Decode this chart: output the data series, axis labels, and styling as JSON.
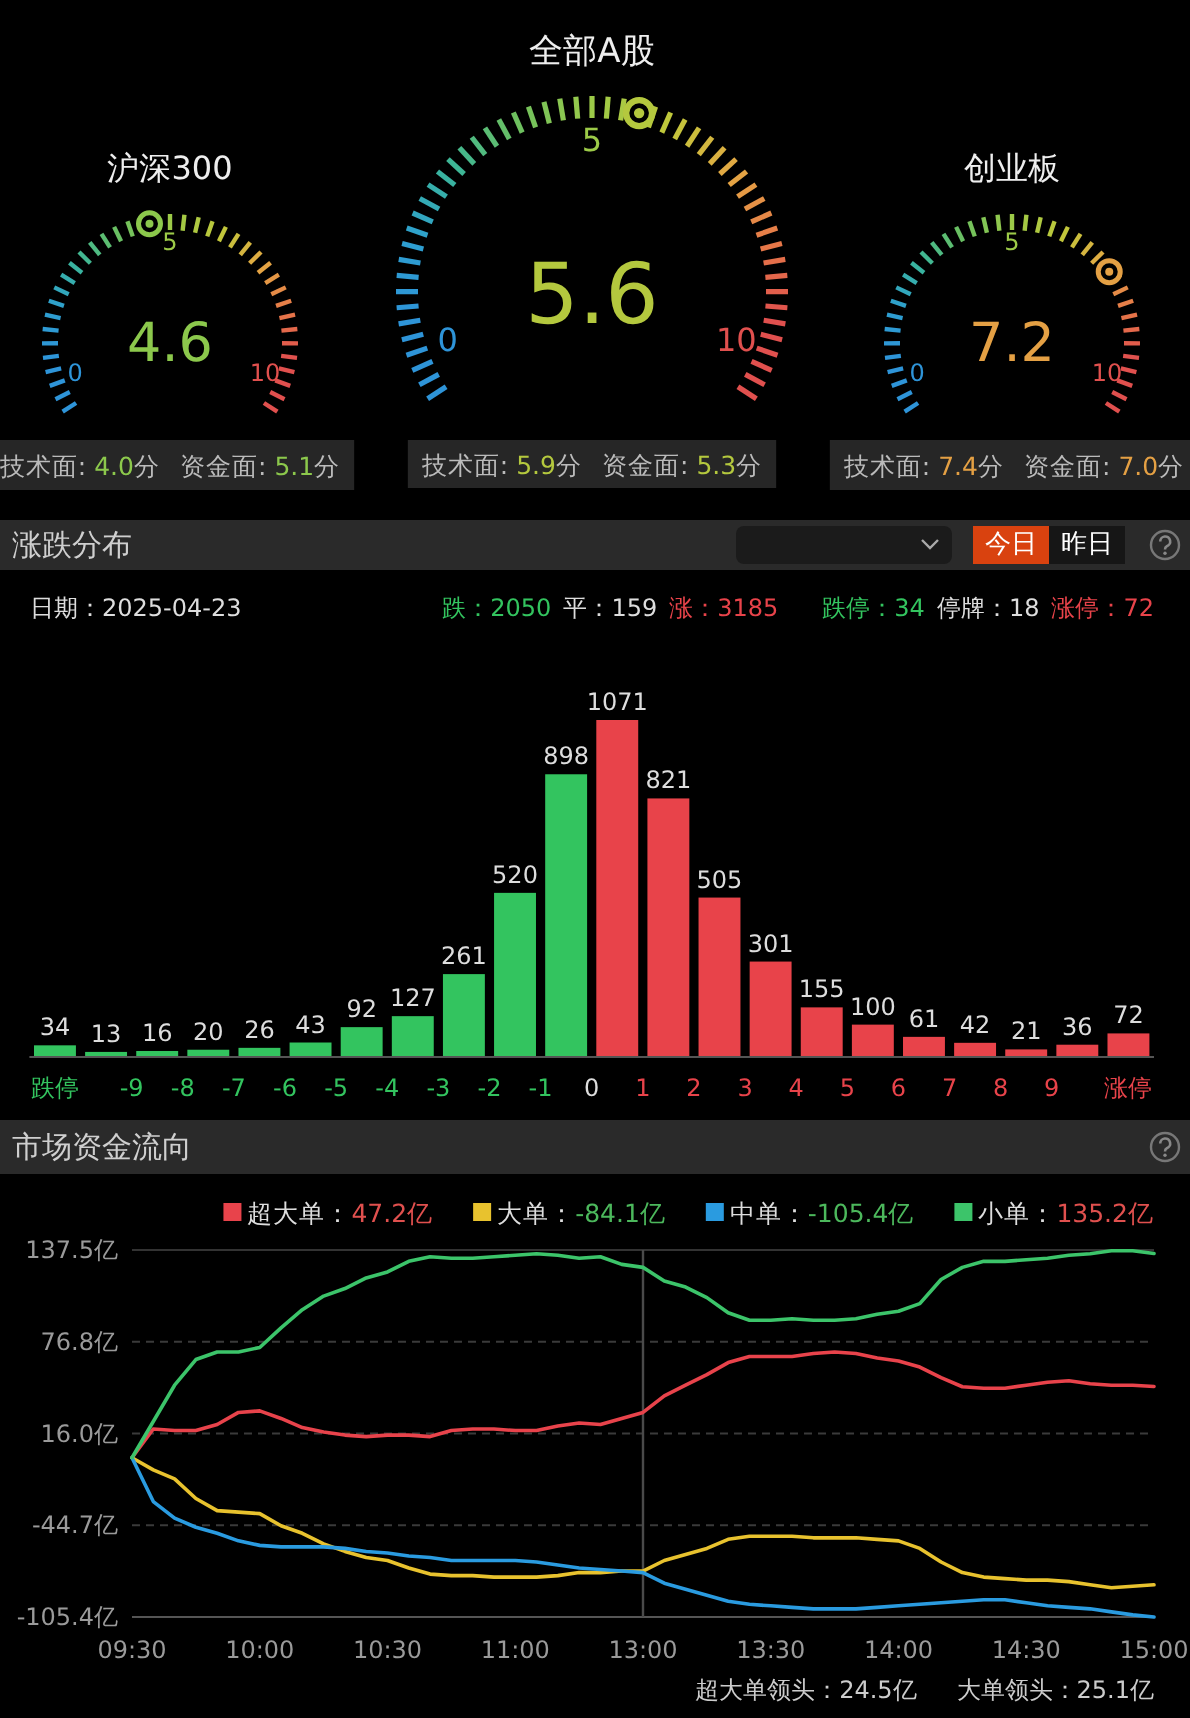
{
  "chart_data": [
    {
      "type": "other",
      "title": "沪深300",
      "values": [
        4.6
      ],
      "data_labels": true,
      "color": "#8cc84c",
      "annotations": [
        "0",
        "5",
        "10"
      ]
    },
    {
      "type": "other",
      "title": "全部A股",
      "values": [
        5.6
      ],
      "data_labels": true,
      "color": "#b4c83e",
      "annotations": [
        "0",
        "5",
        "10"
      ]
    },
    {
      "type": "other",
      "title": "创业板",
      "values": [
        7.2
      ],
      "data_labels": true,
      "color": "#e4a044",
      "annotations": [
        "0",
        "5",
        "10"
      ]
    },
    {
      "type": "other",
      "color": "#8cc84c",
      "annotations": [
        "技术面: 4.0分",
        "资金面: 5.1分"
      ]
    },
    {
      "type": "other",
      "color": "#b4c83e",
      "annotations": [
        "技术面: 5.9分",
        "资金面: 5.3分"
      ]
    },
    {
      "type": "other",
      "color": "#e4a044",
      "annotations": [
        "技术面: 7.4分",
        "资金面: 7.0分"
      ]
    },
    {
      "type": "bar",
      "title": "涨跌分布",
      "x": [
        -10.5,
        -9.5,
        -8.5,
        -7.5,
        -6.5,
        -5.5,
        -4.5,
        -3.5,
        -2.5,
        -1.5,
        -0.5,
        0.5,
        1.5,
        2.5,
        3.5,
        4.5,
        5.5,
        6.5,
        7.5,
        8.5,
        9.5,
        10.5
      ],
      "values": [
        34,
        13,
        16,
        20,
        26,
        43,
        92,
        127,
        261,
        520,
        898,
        1071,
        821,
        505,
        301,
        155,
        100,
        61,
        42,
        21,
        36,
        72
      ],
      "colors": [
        "#33c45f",
        "#33c45f",
        "#33c45f",
        "#33c45f",
        "#33c45f",
        "#33c45f",
        "#33c45f",
        "#33c45f",
        "#33c45f",
        "#33c45f",
        "#33c45f",
        "#e8434a",
        "#e8434a",
        "#e8434a",
        "#e8434a",
        "#e8434a",
        "#e8434a",
        "#e8434a",
        "#e8434a",
        "#e8434a",
        "#e8434a",
        "#e8434a"
      ],
      "xlim": [
        -11,
        11
      ],
      "xticks": [
        {
          "value": -10.5,
          "label": "跌停"
        },
        -9,
        -8,
        -7,
        -6,
        -5,
        -4,
        -3,
        -2,
        -1,
        0,
        1,
        2,
        3,
        4,
        5,
        6,
        7,
        8,
        9,
        {
          "value": 10.5,
          "label": "涨停"
        }
      ],
      "data_labels": true,
      "annotations": [
        "今日",
        "昨日",
        "日期：2025-04-23",
        "跌：2050",
        "平：159",
        "涨：3185",
        "跌停：34",
        "停牌：18",
        "涨停：72"
      ]
    },
    {
      "type": "line",
      "title": "市场资金流向",
      "categories": [
        "09:30",
        null,
        null,
        null,
        null,
        null,
        "10:00",
        null,
        null,
        null,
        null,
        null,
        "10:30",
        null,
        null,
        null,
        null,
        null,
        "11:00",
        null,
        null,
        null,
        null,
        null,
        "13:00",
        null,
        null,
        null,
        null,
        null,
        "13:30",
        null,
        null,
        null,
        null,
        null,
        "14:00",
        null,
        null,
        null,
        null,
        null,
        "14:30",
        null,
        null,
        null,
        null,
        null,
        "15:00"
      ],
      "series": [
        {
          "name": "超大单：47.2亿",
          "color": "#e8434b",
          "values": [
            0,
            19,
            18,
            18,
            22,
            30,
            31,
            26,
            20,
            17,
            15,
            14,
            15,
            15,
            14,
            18,
            19,
            19,
            18,
            18,
            21,
            23,
            22,
            26,
            30,
            41,
            48,
            55,
            63,
            67,
            67,
            67,
            69,
            70,
            69,
            66,
            64,
            60,
            53,
            47,
            46,
            46,
            48,
            50,
            51,
            49,
            48,
            48,
            47.2
          ]
        },
        {
          "name": "大单：-84.1亿",
          "color": "#e8c22e",
          "values": [
            0,
            -8,
            -14,
            -27,
            -35,
            -36,
            -37,
            -45,
            -50,
            -57,
            -62,
            -66,
            -68,
            -73,
            -77,
            -78,
            -78,
            -79,
            -79,
            -79,
            -78,
            -76,
            -76,
            -75,
            -75,
            -68,
            -64,
            -60,
            -54,
            -52,
            -52,
            -52,
            -53,
            -53,
            -53,
            -54,
            -55,
            -60,
            -69,
            -76,
            -79,
            -80,
            -81,
            -81,
            -82,
            -84,
            -86,
            -85,
            -84.1
          ]
        },
        {
          "name": "中单：-105.4亿",
          "color": "#2a9be0",
          "values": [
            0,
            -29,
            -40,
            -46,
            -50,
            -55,
            -58,
            -59,
            -59,
            -59,
            -60,
            -62,
            -63,
            -65,
            -66,
            -68,
            -68,
            -68,
            -68,
            -69,
            -71,
            -73,
            -74,
            -75,
            -76,
            -83,
            -87,
            -91,
            -95,
            -97,
            -98,
            -99,
            -100,
            -100,
            -100,
            -99,
            -98,
            -97,
            -96,
            -95,
            -94,
            -94,
            -96,
            -98,
            -99,
            -100,
            -102,
            -104,
            -105.4
          ]
        },
        {
          "name": "小单：135.2亿",
          "color": "#3cc46a",
          "values": [
            0,
            24,
            48,
            65,
            70,
            70,
            73,
            86,
            98,
            107,
            112,
            119,
            123,
            130,
            133,
            132,
            132,
            133,
            134,
            135,
            134,
            132,
            133,
            128,
            126,
            117,
            113,
            106,
            96,
            91,
            91,
            92,
            91,
            91,
            92,
            95,
            97,
            102,
            118,
            126,
            130,
            130,
            131,
            132,
            134,
            135,
            137,
            137,
            135.2
          ]
        }
      ],
      "ylim": [
        -105.4,
        137.5
      ],
      "yticks": [
        {
          "value": -105.4,
          "label": "-105.4亿"
        },
        {
          "value": -44.7,
          "label": "-44.7亿"
        },
        {
          "value": 16.0,
          "label": "16.0亿"
        },
        {
          "value": 76.8,
          "label": "76.8亿"
        },
        {
          "value": 137.5,
          "label": "137.5亿"
        }
      ],
      "grid": "y",
      "legend": "top right",
      "ref_lines": [
        {
          "axis": "x",
          "value": "13:00",
          "color": "#4a4a4a"
        }
      ],
      "annotations": [
        "超大单领头：24.5亿",
        "大单领头：25.1亿"
      ]
    }
  ]
}
